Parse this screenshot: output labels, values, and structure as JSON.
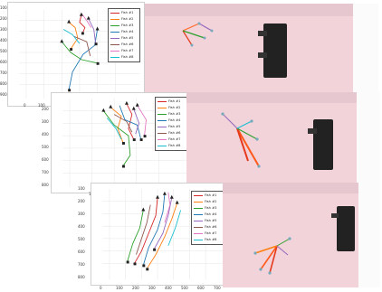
{
  "panels": [
    {
      "id": "panel-1",
      "y_ticks": [
        "100",
        "200",
        "300",
        "400",
        "500",
        "600",
        "700",
        "800",
        "900"
      ],
      "x_ticks": [
        "0",
        "100",
        "200"
      ],
      "legend": [
        "Fish #1",
        "Fish #2",
        "Fish #3",
        "Fish #4",
        "Fish #5",
        "Fish #6",
        "Fish #7",
        "Fish #8"
      ]
    },
    {
      "id": "panel-2",
      "y_ticks": [
        "200",
        "300",
        "400",
        "500",
        "600",
        "700",
        "800"
      ],
      "x_ticks": [
        "",
        "100",
        "200"
      ],
      "legend": [
        "Fish #1",
        "Fish #2",
        "Fish #3",
        "Fish #4",
        "Fish #5",
        "Fish #6",
        "Fish #7",
        "Fish #8"
      ]
    },
    {
      "id": "panel-3",
      "y_ticks": [
        "100",
        "200",
        "300",
        "400",
        "500",
        "600",
        "700",
        "800"
      ],
      "x_ticks": [
        "0",
        "100",
        "200",
        "300",
        "400",
        "500",
        "600",
        "700"
      ],
      "legend": [
        "Fish #1",
        "Fish #2",
        "Fish #3",
        "Fish #4",
        "Fish #5",
        "Fish #6",
        "Fish #7",
        "Fish #8"
      ]
    }
  ],
  "colors": {
    "fish": [
      "#d62728",
      "#ff7f0e",
      "#2ca02c",
      "#1f77b4",
      "#9467bd",
      "#8c564b",
      "#e377c2",
      "#17becf"
    ],
    "tank_bg": "#f2d3da",
    "pipe": "#222222"
  }
}
